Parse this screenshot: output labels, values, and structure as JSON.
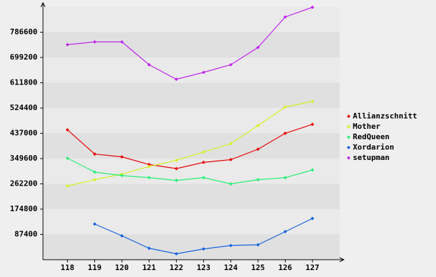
{
  "chart_data": {
    "type": "line",
    "categories": [
      "118",
      "119",
      "120",
      "121",
      "122",
      "123",
      "124",
      "125",
      "126",
      "127"
    ],
    "series": [
      {
        "name": "Allianzschnitt",
        "color": "#e80000",
        "values": [
          449000,
          365200,
          355600,
          329200,
          314900,
          336400,
          346000,
          381900,
          437000,
          468100
        ]
      },
      {
        "name": "Mother",
        "color": "#d8f020",
        "values": [
          255000,
          276600,
          295700,
          322100,
          343600,
          372300,
          401100,
          463300,
          528000,
          547100
        ]
      },
      {
        "name": "RedQueen",
        "color": "#20f070",
        "values": [
          350800,
          302900,
          290900,
          283700,
          274200,
          283700,
          262200,
          276600,
          283700,
          310100
        ]
      },
      {
        "name": "Xordarion",
        "color": "#1060e0",
        "values": [
          null,
          123300,
          82600,
          39500,
          20400,
          37100,
          49100,
          51500,
          97000,
          142500
        ]
      },
      {
        "name": "setupman",
        "color": "#c020f0",
        "values": [
          743500,
          753100,
          753100,
          674100,
          623800,
          647700,
          674100,
          733900,
          839300,
          872800
        ]
      }
    ],
    "ylim": [
      0,
      874000
    ],
    "yticks": [
      87400,
      174800,
      262200,
      349600,
      437000,
      524400,
      611800,
      699200,
      786600
    ],
    "grid": true,
    "legend": "right"
  }
}
